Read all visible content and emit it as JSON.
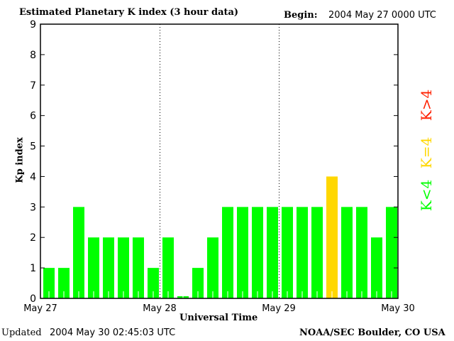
{
  "chart_data": {
    "type": "bar",
    "title": "Estimated Planetary K index (3 hour data)",
    "begin_label": "Begin:",
    "begin_value": "2004 May 27 0000 UTC",
    "xlabel": "Universal Time",
    "ylabel": "Kp index",
    "ylim": [
      0,
      9
    ],
    "yticks": [
      "0",
      "1",
      "2",
      "3",
      "4",
      "5",
      "6",
      "7",
      "8",
      "9"
    ],
    "xticks": [
      "May 27",
      "May 28",
      "May 29",
      "May 30"
    ],
    "grid": "dotted vertical day separators",
    "values": [
      1,
      1,
      3,
      2,
      2,
      2,
      2,
      1,
      2,
      0,
      1,
      2,
      3,
      3,
      3,
      3,
      3,
      3,
      3,
      4,
      3,
      3,
      2,
      3
    ],
    "colors": {
      "below4": "#00ff00",
      "equal4": "#ffd700",
      "above4": "#ff2000"
    },
    "legend": [
      {
        "label": "K<4",
        "color": "#00ff00"
      },
      {
        "label": "K=4",
        "color": "#ffd700"
      },
      {
        "label": "K>4",
        "color": "#ff2000"
      }
    ],
    "legend_placement": "right"
  },
  "footer": {
    "updated_label": "Updated",
    "updated_value": "2004 May 30 02:45:03 UTC",
    "source": "NOAA/SEC Boulder, CO USA"
  }
}
